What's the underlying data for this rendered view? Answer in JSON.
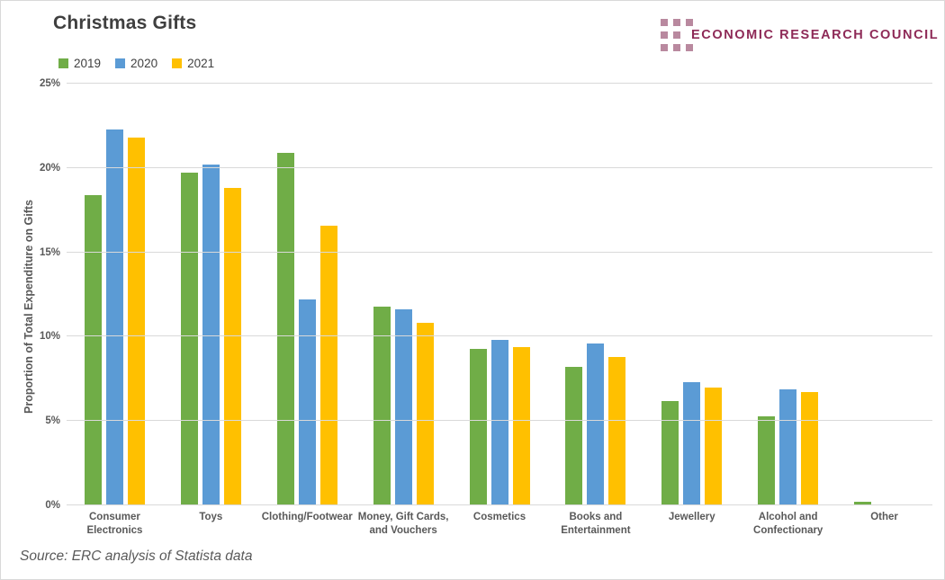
{
  "header": {
    "title": "Christmas Gifts",
    "logo_text": "ECONOMIC RESEARCH COUNCIL"
  },
  "footer": {
    "source": "Source: ERC analysis of Statista data"
  },
  "colors": {
    "title_text": "#3f3f3f",
    "axis_text": "#595959",
    "gridline": "#d9d9d9",
    "logo_text": "#8e2a57",
    "logo_square": "#b9899f",
    "series_2019": "#70ad47",
    "series_2020": "#5b9bd5",
    "series_2021": "#ffc000"
  },
  "chart_data": {
    "type": "bar",
    "title": "Christmas Gifts",
    "xlabel": "",
    "ylabel": "Proportion of Total Expenditure on Gifts",
    "ylim": [
      0,
      25
    ],
    "yticks": [
      "0%",
      "5%",
      "10%",
      "15%",
      "20%",
      "25%"
    ],
    "grid": true,
    "legend_position": "top-left",
    "categories": [
      "Consumer\nElectronics",
      "Toys",
      "Clothing/Footwear",
      "Money, Gift Cards,\nand Vouchers",
      "Cosmetics",
      "Books and\nEntertainment",
      "Jewellery",
      "Alcohol and\nConfectionary",
      "Other"
    ],
    "series": [
      {
        "name": "2019",
        "color": "#70ad47",
        "values": [
          18.4,
          19.7,
          20.9,
          11.8,
          9.3,
          8.2,
          6.2,
          5.3,
          0.2
        ]
      },
      {
        "name": "2020",
        "color": "#5b9bd5",
        "values": [
          22.3,
          20.2,
          12.2,
          11.6,
          9.8,
          9.6,
          7.3,
          6.9,
          0
        ]
      },
      {
        "name": "2021",
        "color": "#ffc000",
        "values": [
          21.8,
          18.8,
          16.6,
          10.8,
          9.4,
          8.8,
          7.0,
          6.7,
          0
        ]
      }
    ]
  }
}
